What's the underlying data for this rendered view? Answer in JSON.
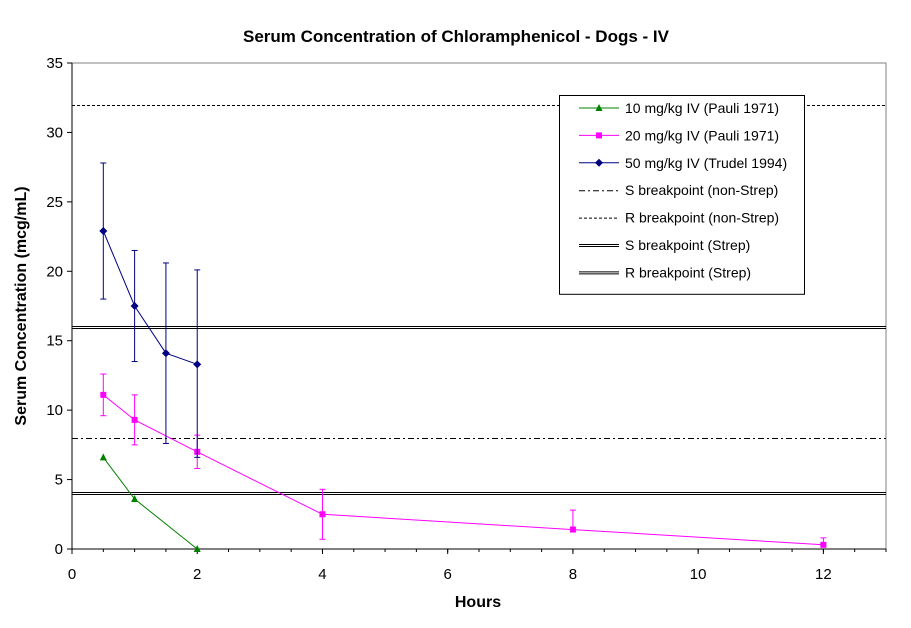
{
  "chart_data": {
    "type": "line",
    "title": "Serum Concentration of Chloramphenicol - Dogs - IV",
    "xlabel": "Hours",
    "ylabel": "Serum Concentration (mcg/mL)",
    "xlim": [
      0,
      13
    ],
    "ylim": [
      0,
      35
    ],
    "x_ticks": [
      0,
      2,
      4,
      6,
      8,
      10,
      12
    ],
    "y_ticks": [
      0,
      5,
      10,
      15,
      20,
      25,
      30,
      35
    ],
    "grid": false,
    "legend_position": "top-right",
    "series": [
      {
        "name": "10 mg/kg IV (Pauli 1971)",
        "color": "#008000",
        "marker": "triangle",
        "points": [
          {
            "x": 0.5,
            "y": 6.6
          },
          {
            "x": 1,
            "y": 3.6
          },
          {
            "x": 2,
            "y": 0
          }
        ]
      },
      {
        "name": "20 mg/kg IV (Pauli 1971)",
        "color": "#FF00FF",
        "marker": "square",
        "points": [
          {
            "x": 0.5,
            "y": 11.1,
            "err_low": 9.6,
            "err_high": 12.6
          },
          {
            "x": 1,
            "y": 9.3,
            "err_low": 7.5,
            "err_high": 11.1
          },
          {
            "x": 2,
            "y": 7.0,
            "err_low": 5.8,
            "err_high": 8.2
          },
          {
            "x": 4,
            "y": 2.5,
            "err_low": 0.7,
            "err_high": 4.3
          },
          {
            "x": 8,
            "y": 1.4,
            "err_high": 2.8
          },
          {
            "x": 12,
            "y": 0.3,
            "err_high": 0.8
          }
        ]
      },
      {
        "name": "50 mg/kg IV (Trudel 1994)",
        "color": "#000080",
        "marker": "diamond",
        "points": [
          {
            "x": 0.5,
            "y": 22.9,
            "err_low": 18.0,
            "err_high": 27.8
          },
          {
            "x": 1,
            "y": 17.5,
            "err_low": 13.5,
            "err_high": 21.5
          },
          {
            "x": 1.5,
            "y": 14.1,
            "err_low": 7.6,
            "err_high": 20.6
          },
          {
            "x": 2,
            "y": 13.3,
            "err_low": 6.6,
            "err_high": 20.1
          }
        ]
      }
    ],
    "reference_lines": [
      {
        "name": "S breakpoint (non-Strep)",
        "y": 8,
        "style": "dashdot"
      },
      {
        "name": "R breakpoint (non-Strep)",
        "y": 32,
        "style": "dotted"
      },
      {
        "name": "S breakpoint (Strep)",
        "y": 4,
        "style": "doubleline"
      },
      {
        "name": "R breakpoint (Strep)",
        "y": 16,
        "style": "doubleline"
      }
    ]
  }
}
